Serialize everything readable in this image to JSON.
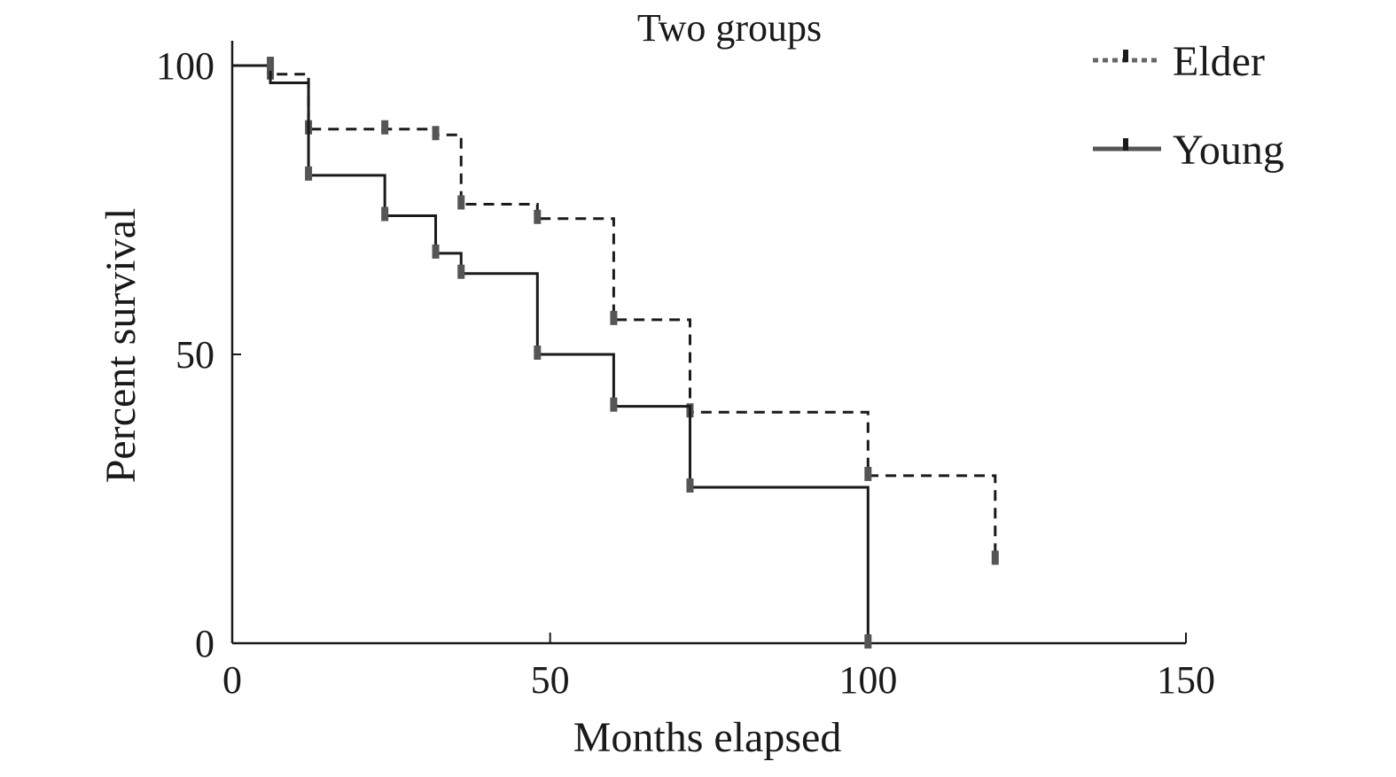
{
  "chart_data": {
    "type": "line",
    "subtype": "kaplan-meier step",
    "title": "Two groups",
    "xlabel": "Months elapsed",
    "ylabel": "Percent survival",
    "xlim": [
      0,
      150
    ],
    "ylim": [
      0,
      100
    ],
    "xticks": [
      0,
      50,
      100,
      150
    ],
    "yticks": [
      0,
      50,
      100
    ],
    "grid": false,
    "legend_position": "top-right",
    "series": [
      {
        "name": "Elder",
        "style": "dashed",
        "color": "#1a1a1a",
        "steps": [
          [
            0,
            100
          ],
          [
            6,
            98.5
          ],
          [
            12,
            89
          ],
          [
            24,
            89
          ],
          [
            32,
            88
          ],
          [
            36,
            76
          ],
          [
            48,
            73.5
          ],
          [
            60,
            56
          ],
          [
            72,
            40
          ],
          [
            100,
            29
          ],
          [
            120,
            14.5
          ]
        ],
        "censor_marks": [
          [
            6,
            98.5
          ],
          [
            12,
            89
          ],
          [
            24,
            89
          ],
          [
            32,
            88
          ],
          [
            36,
            76
          ],
          [
            48,
            73.5
          ],
          [
            60,
            56
          ],
          [
            72,
            40
          ],
          [
            100,
            29
          ],
          [
            120,
            14.5
          ]
        ]
      },
      {
        "name": "Young",
        "style": "solid",
        "color": "#1a1a1a",
        "steps": [
          [
            0,
            100
          ],
          [
            6,
            97
          ],
          [
            12,
            81
          ],
          [
            24,
            74
          ],
          [
            32,
            67.5
          ],
          [
            36,
            64
          ],
          [
            48,
            50
          ],
          [
            60,
            41
          ],
          [
            72,
            27
          ],
          [
            100,
            0
          ]
        ],
        "censor_marks": [
          [
            6,
            100
          ],
          [
            12,
            81
          ],
          [
            24,
            74
          ],
          [
            32,
            67.5
          ],
          [
            36,
            64
          ],
          [
            48,
            50
          ],
          [
            60,
            41
          ],
          [
            72,
            27
          ],
          [
            100,
            0
          ]
        ]
      }
    ]
  }
}
